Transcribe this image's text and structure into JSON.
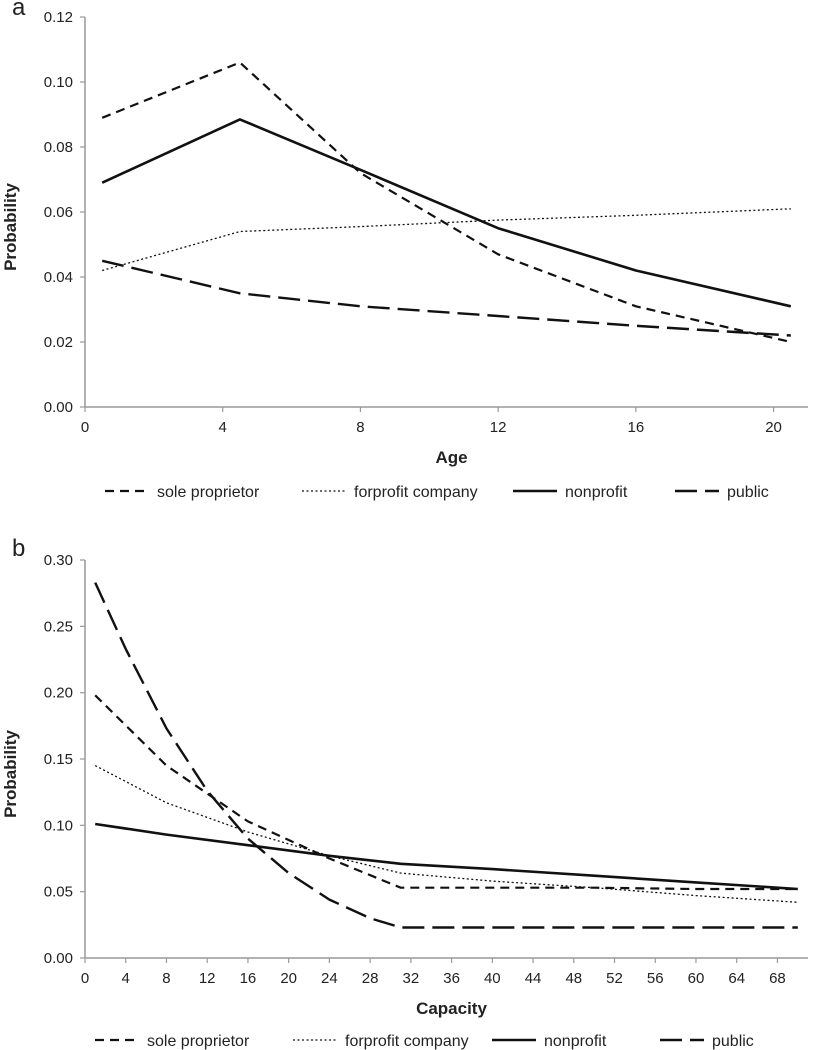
{
  "chart_data": [
    {
      "panel": "a",
      "type": "line",
      "title": "",
      "xlabel": "Age",
      "ylabel": "Probability",
      "xlim": [
        0,
        21
      ],
      "ylim": [
        0,
        0.12
      ],
      "xticks": [
        0,
        4,
        8,
        12,
        16,
        20
      ],
      "yticks": [
        0.0,
        0.02,
        0.04,
        0.06,
        0.08,
        0.1,
        0.12
      ],
      "ytick_labels": [
        "0.00",
        "0.02",
        "0.04",
        "0.06",
        "0.08",
        "0.10",
        "0.12"
      ],
      "legend": "bottom",
      "series": [
        {
          "name": "sole proprietor",
          "style": "short-dash",
          "x": [
            0.5,
            4.5,
            8,
            12,
            16,
            20.5
          ],
          "y": [
            0.089,
            0.106,
            0.072,
            0.047,
            0.031,
            0.02
          ]
        },
        {
          "name": "forprofit company",
          "style": "dotted",
          "x": [
            0.5,
            4.5,
            8,
            12,
            16,
            20.5
          ],
          "y": [
            0.042,
            0.054,
            0.0555,
            0.0575,
            0.059,
            0.061
          ]
        },
        {
          "name": "nonprofit",
          "style": "solid",
          "x": [
            0.5,
            4.5,
            8,
            12,
            16,
            20.5
          ],
          "y": [
            0.069,
            0.0885,
            0.073,
            0.055,
            0.042,
            0.031
          ]
        },
        {
          "name": "public",
          "style": "long-dash",
          "x": [
            0.5,
            4.5,
            8,
            12,
            16,
            20.5
          ],
          "y": [
            0.045,
            0.035,
            0.031,
            0.028,
            0.025,
            0.022
          ]
        }
      ]
    },
    {
      "panel": "b",
      "type": "line",
      "title": "",
      "xlabel": "Capacity",
      "ylabel": "Probability",
      "xlim": [
        0,
        71
      ],
      "ylim": [
        0,
        0.3
      ],
      "xticks": [
        0,
        4,
        8,
        12,
        16,
        20,
        24,
        28,
        32,
        36,
        40,
        44,
        48,
        52,
        56,
        60,
        64,
        68
      ],
      "yticks": [
        0.0,
        0.05,
        0.1,
        0.15,
        0.2,
        0.25,
        0.3
      ],
      "ytick_labels": [
        "0.00",
        "0.05",
        "0.10",
        "0.15",
        "0.20",
        "0.25",
        "0.30"
      ],
      "legend": "bottom",
      "series": [
        {
          "name": "sole proprietor",
          "style": "short-dash",
          "x": [
            1,
            8,
            16,
            24,
            31,
            40,
            50,
            60,
            70
          ],
          "y": [
            0.198,
            0.145,
            0.103,
            0.075,
            0.053,
            0.053,
            0.053,
            0.052,
            0.052
          ]
        },
        {
          "name": "forprofit company",
          "style": "dotted",
          "x": [
            1,
            8,
            16,
            24,
            31,
            40,
            50,
            60,
            70
          ],
          "y": [
            0.145,
            0.117,
            0.095,
            0.077,
            0.064,
            0.058,
            0.053,
            0.047,
            0.042
          ]
        },
        {
          "name": "nonprofit",
          "style": "solid",
          "x": [
            1,
            8,
            16,
            24,
            31,
            40,
            50,
            60,
            70
          ],
          "y": [
            0.101,
            0.093,
            0.085,
            0.077,
            0.071,
            0.067,
            0.062,
            0.057,
            0.052
          ]
        },
        {
          "name": "public",
          "style": "long-dash",
          "x": [
            1,
            4,
            8,
            12,
            16,
            20,
            24,
            28,
            31,
            40,
            50,
            60,
            70
          ],
          "y": [
            0.283,
            0.233,
            0.173,
            0.126,
            0.09,
            0.064,
            0.044,
            0.03,
            0.023,
            0.023,
            0.023,
            0.023,
            0.023
          ]
        }
      ]
    }
  ]
}
